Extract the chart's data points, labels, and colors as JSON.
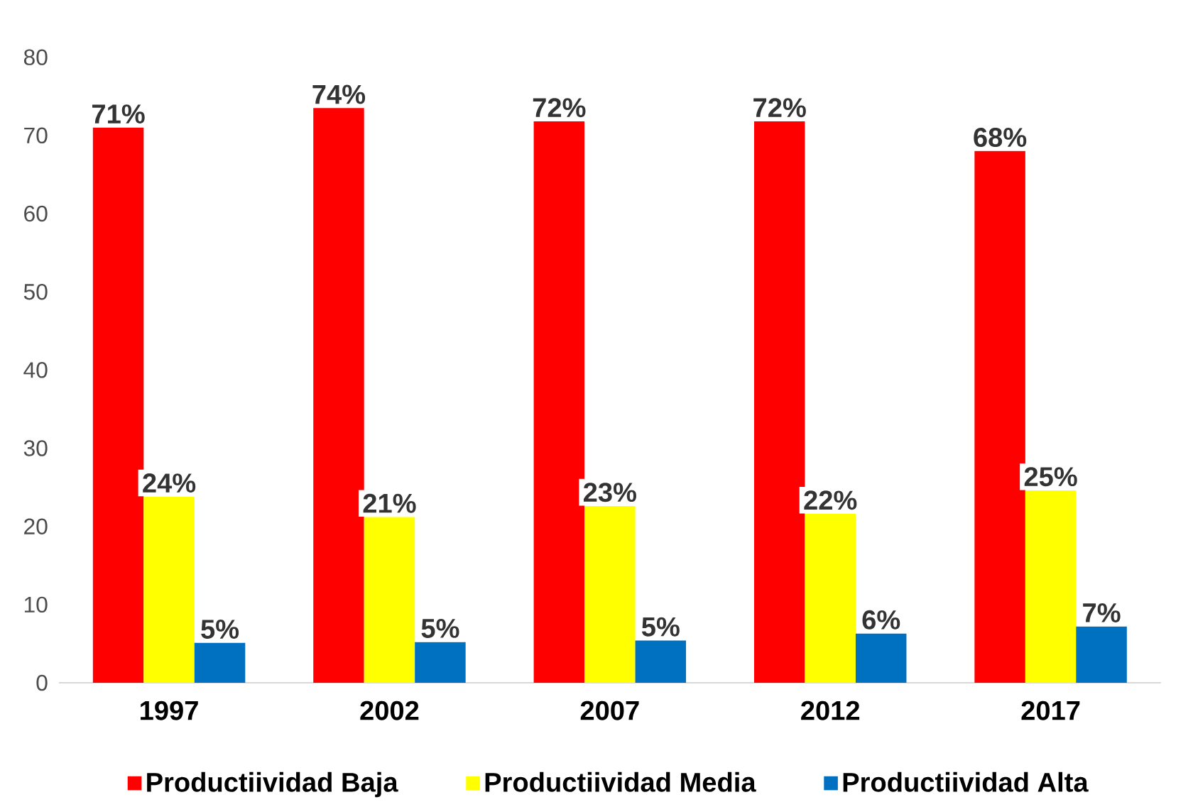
{
  "chart_data": {
    "type": "bar",
    "categories": [
      "1997",
      "2002",
      "2007",
      "2012",
      "2017"
    ],
    "series": [
      {
        "name": "Productiividad Baja",
        "color": "#ff0000",
        "values": [
          71,
          73.5,
          71.8,
          71.8,
          68
        ],
        "value_labels": [
          "71%",
          "74%",
          "72%",
          "72%",
          "68%"
        ]
      },
      {
        "name": "Productiividad Media",
        "color": "#ffff00",
        "values": [
          23.8,
          21.2,
          22.6,
          21.6,
          24.6
        ],
        "value_labels": [
          "24%",
          "21%",
          "23%",
          "22%",
          "25%"
        ]
      },
      {
        "name": "Productiividad Alta",
        "color": "#0070c0",
        "values": [
          5.1,
          5.2,
          5.4,
          6.3,
          7.2
        ],
        "value_labels": [
          "5%",
          "5%",
          "5%",
          "6%",
          "7%"
        ]
      }
    ],
    "ylim": [
      0,
      80
    ],
    "yticks": [
      0,
      10,
      20,
      30,
      40,
      50,
      60,
      70,
      80
    ],
    "legend": "bottom"
  }
}
